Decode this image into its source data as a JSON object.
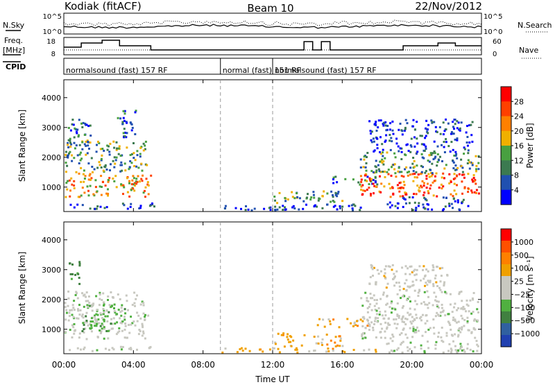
{
  "header": {
    "station": "Kodiak (fitACF)",
    "beam": "Beam 10",
    "date": "22/Nov/2012"
  },
  "strip": {
    "nsky_label": "N.Sky",
    "nsearch_label": "N.Search",
    "noise_ticks": [
      "10^5",
      "10^0"
    ],
    "freq_label_line1": "Freq.",
    "freq_label_line2": "[MHz]",
    "freq_ticks": [
      "18",
      "8"
    ],
    "nave_label": "Nave",
    "nave_ticks": [
      "60",
      "0"
    ],
    "cpid_label": "CPID",
    "cpid_segments": [
      {
        "label": "normalsound (fast) 157 RF",
        "start": 0,
        "end": 9
      },
      {
        "label": "normal (fast) 151 RF",
        "start": 9,
        "end": 12
      },
      {
        "label": "normalsound (fast) 157 RF",
        "start": 12,
        "end": 24
      }
    ]
  },
  "colors": {
    "power": [
      "#0000ff",
      "#2050b0",
      "#3c7a50",
      "#48a040",
      "#f0b000",
      "#ff8000",
      "#ff4000",
      "#ff0000"
    ],
    "velocity": [
      "#2040b0",
      "#3060a0",
      "#408040",
      "#50b040",
      "#c8c8c0",
      "#c8c8c0",
      "#f0a000",
      "#ff8000",
      "#ff5000",
      "#ff0000"
    ]
  },
  "chart_data": [
    {
      "type": "heatmap",
      "panel": "power",
      "ylabel": "Slant Range [km]",
      "xlabel": "",
      "xlim": [
        0,
        24
      ],
      "ylim": [
        180,
        4600
      ],
      "yticks": [
        "1000",
        "2000",
        "3000",
        "4000"
      ],
      "xticks": [
        "00:00",
        "04:00",
        "08:00",
        "12:00",
        "16:00",
        "20:00",
        "00:00"
      ],
      "colorbar_label": "Power [dB]",
      "colorbar_ticks": [
        "4",
        "8",
        "12",
        "16",
        "20",
        "24",
        "28"
      ],
      "clim": [
        0,
        32
      ],
      "regions": [
        {
          "t0": 0.0,
          "t1": 5.0,
          "r0": 700,
          "r1": 1500,
          "level": 24
        },
        {
          "t0": 0.0,
          "t1": 4.8,
          "r0": 1500,
          "r1": 2600,
          "level": 14
        },
        {
          "t0": 0.2,
          "t1": 1.5,
          "r0": 2500,
          "r1": 3300,
          "level": 12
        },
        {
          "t0": 3.0,
          "t1": 4.2,
          "r0": 2600,
          "r1": 3600,
          "level": 10
        },
        {
          "t0": 0.0,
          "t1": 5.2,
          "r0": 300,
          "r1": 500,
          "level": 8
        },
        {
          "t0": 9.0,
          "t1": 14.0,
          "r0": 250,
          "r1": 400,
          "level": 6
        },
        {
          "t0": 12.0,
          "t1": 16.0,
          "r0": 450,
          "r1": 900,
          "level": 14
        },
        {
          "t0": 12.0,
          "t1": 18.0,
          "r0": 250,
          "r1": 450,
          "level": 8
        },
        {
          "t0": 15.0,
          "t1": 18.0,
          "r0": 1100,
          "r1": 1400,
          "level": 12
        },
        {
          "t0": 17.0,
          "t1": 23.8,
          "r0": 700,
          "r1": 1500,
          "level": 26
        },
        {
          "t0": 17.0,
          "t1": 23.8,
          "r0": 1500,
          "r1": 2200,
          "level": 14
        },
        {
          "t0": 17.5,
          "t1": 23.5,
          "r0": 2200,
          "r1": 3300,
          "level": 8
        },
        {
          "t0": 18.5,
          "t1": 23.8,
          "r0": 250,
          "r1": 700,
          "level": 6
        }
      ]
    },
    {
      "type": "heatmap",
      "panel": "velocity",
      "ylabel": "Slant Range [km]",
      "xlabel": "Time UT",
      "xlim": [
        0,
        24
      ],
      "ylim": [
        180,
        4600
      ],
      "yticks": [
        "1000",
        "2000",
        "3000",
        "4000"
      ],
      "xticks": [
        "00:00",
        "04:00",
        "08:00",
        "12:00",
        "16:00",
        "20:00",
        "00:00"
      ],
      "colorbar_label": "Velocity [m s⁻¹]",
      "colorbar_ticks": [
        "1000",
        "500",
        "100",
        "25",
        "−25",
        "−100",
        "−500",
        "−1000"
      ],
      "regions": [
        {
          "t0": 0.0,
          "t1": 4.8,
          "r0": 700,
          "r1": 1600,
          "level": 4
        },
        {
          "t0": 1.0,
          "t1": 3.5,
          "r0": 900,
          "r1": 1900,
          "level": 3
        },
        {
          "t0": 0.0,
          "t1": 4.6,
          "r0": 1600,
          "r1": 2300,
          "level": 4
        },
        {
          "t0": 0.2,
          "t1": 0.9,
          "r0": 2500,
          "r1": 3300,
          "level": 2
        },
        {
          "t0": 0.0,
          "t1": 5.0,
          "r0": 300,
          "r1": 450,
          "level": 4
        },
        {
          "t0": 12.0,
          "t1": 16.0,
          "r0": 450,
          "r1": 900,
          "level": 6
        },
        {
          "t0": 14.5,
          "t1": 17.5,
          "r0": 1100,
          "r1": 1400,
          "level": 6
        },
        {
          "t0": 9.0,
          "t1": 18.0,
          "r0": 250,
          "r1": 400,
          "level": 6
        },
        {
          "t0": 17.0,
          "t1": 23.8,
          "r0": 700,
          "r1": 2300,
          "level": 4
        },
        {
          "t0": 17.5,
          "t1": 22.0,
          "r0": 2300,
          "r1": 3200,
          "level": 5
        },
        {
          "t0": 18.5,
          "t1": 23.8,
          "r0": 250,
          "r1": 650,
          "level": 4
        }
      ]
    }
  ]
}
